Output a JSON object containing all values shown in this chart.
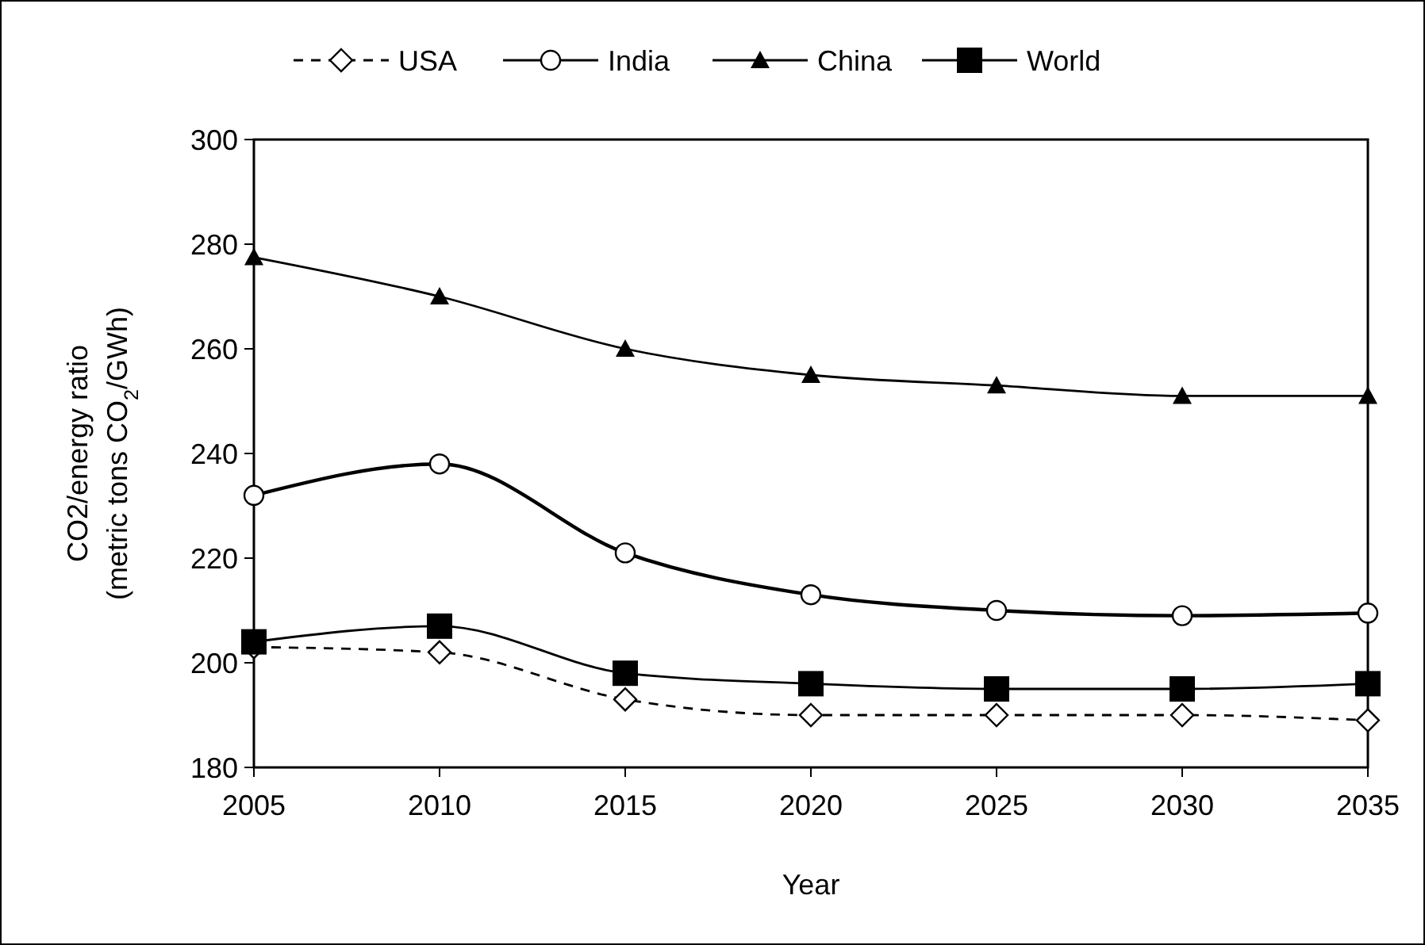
{
  "chart_data": {
    "type": "line",
    "xlabel": "Year",
    "ylabel": "CO2/energy ratio\n(metric tons CO$_{2}$/GWh)",
    "x": [
      2005,
      2010,
      2015,
      2020,
      2025,
      2030,
      2035
    ],
    "xlim": [
      2005,
      2035
    ],
    "xticks": [
      2005,
      2010,
      2015,
      2020,
      2025,
      2030,
      2035
    ],
    "ylim": [
      180,
      300
    ],
    "yticks": [
      180,
      200,
      220,
      240,
      260,
      280,
      300
    ],
    "legend": "top",
    "grid": false,
    "series": [
      {
        "name": "USA",
        "color": "#000000",
        "marker": "diamond",
        "line_style": "dashed",
        "values": [
          203,
          202,
          193,
          190,
          190,
          190,
          189
        ]
      },
      {
        "name": "India",
        "color": "#000000",
        "marker": "circle",
        "line_style": "solid",
        "values": [
          232,
          238,
          221,
          213,
          210,
          209,
          209.5
        ]
      },
      {
        "name": "China",
        "color": "#000000",
        "marker": "triangle",
        "line_style": "solid",
        "values": [
          277.5,
          270,
          260,
          255,
          253,
          251,
          251
        ]
      },
      {
        "name": "World",
        "color": "#000000",
        "marker": "square",
        "line_style": "solid",
        "values": [
          204,
          207,
          198,
          196,
          195,
          195,
          196
        ]
      }
    ]
  }
}
